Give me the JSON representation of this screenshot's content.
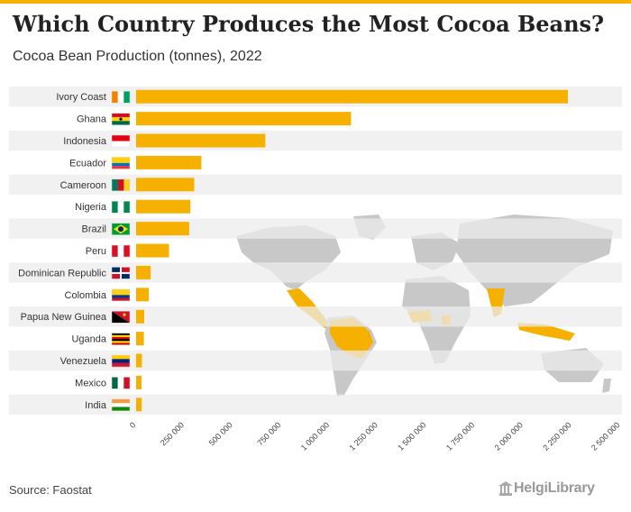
{
  "title": "Which Country Produces the Most Cocoa Beans?",
  "subtitle": "Cocoa Bean Production (tonnes), 2022",
  "source": "Source: Faostat",
  "brand": "HelgiLibrary",
  "colors": {
    "accent": "#f6b000",
    "map_land": "#c8c8c8",
    "map_highlight": "#f6b000",
    "row_stripe": "#ececec"
  },
  "chart_data": {
    "type": "bar",
    "orientation": "horizontal",
    "title": "Which Country Produces the Most Cocoa Beans?",
    "subtitle": "Cocoa Bean Production (tonnes), 2022",
    "categories": [
      "Ivory Coast",
      "Ghana",
      "Indonesia",
      "Ecuador",
      "Cameroon",
      "Nigeria",
      "Brazil",
      "Peru",
      "Dominican Republic",
      "Colombia",
      "Papua New Guinea",
      "Uganda",
      "Venezuela",
      "Mexico",
      "India"
    ],
    "values": [
      2230000,
      1110000,
      667300,
      337000,
      300000,
      280000,
      273900,
      170000,
      75000,
      65000,
      42000,
      40000,
      30000,
      28000,
      29000
    ],
    "xlim": [
      0,
      2500000
    ],
    "xticks": [
      0,
      250000,
      500000,
      750000,
      1000000,
      1250000,
      1500000,
      1750000,
      2000000,
      2250000,
      2500000
    ],
    "xtick_labels": [
      "0",
      "250 000",
      "500 000",
      "750 000",
      "1 000 000",
      "1 250 000",
      "1 500 000",
      "1 750 000",
      "2 000 000",
      "2 250 000",
      "2 500 000"
    ],
    "xlabel": "",
    "ylabel": "",
    "bar_color": "#f6b000",
    "legend": "none",
    "grid": false
  }
}
